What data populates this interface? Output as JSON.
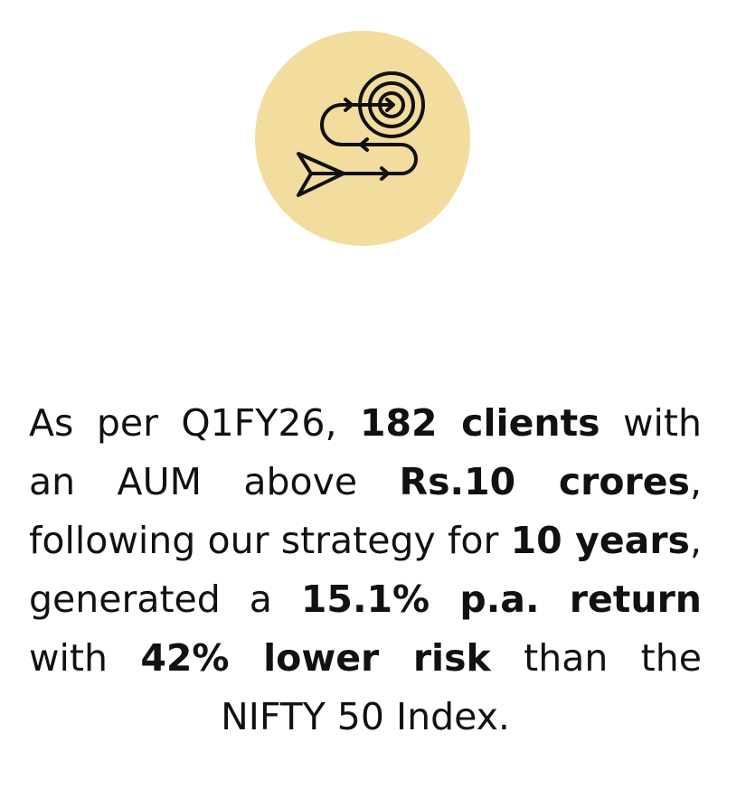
{
  "icon": {
    "name": "target-strategy-icon",
    "badge_color": "#f2dd9e",
    "stroke_color": "#111111"
  },
  "statement": {
    "t1": "As per Q1FY26, ",
    "b1": "182 clients",
    "t2": " with an AUM above ",
    "b2": "Rs.10 crores",
    "t3": ", following our strategy for ",
    "b3": "10 years",
    "t4": ", generated a ",
    "b4": "15.1% p.a. return",
    "t5": " with ",
    "b5": "42% lower risk",
    "t6": " than the NIFTY 50 Index."
  }
}
